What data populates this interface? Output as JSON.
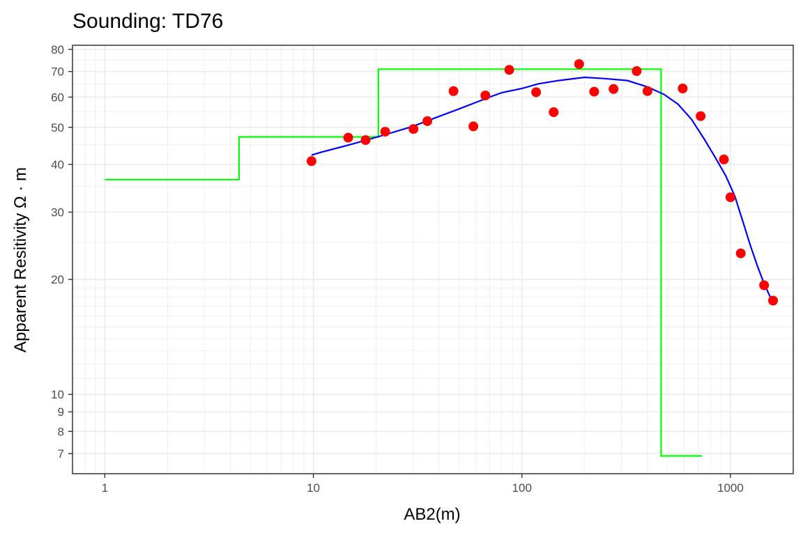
{
  "chart_data": {
    "type": "scatter",
    "title": "Sounding:  TD76",
    "xlabel": "AB2(m)",
    "ylabel": "Apparent Resitivity Ω · m",
    "x_scale": "log10",
    "y_scale": "log10",
    "xlim": [
      0.7,
      2000
    ],
    "ylim": [
      6.2,
      82
    ],
    "x_ticks": [
      {
        "value": 1,
        "label": "1"
      },
      {
        "value": 10,
        "label": "10"
      },
      {
        "value": 100,
        "label": "100"
      },
      {
        "value": 1000,
        "label": "1000"
      }
    ],
    "y_ticks": [
      {
        "value": 7,
        "label": "7"
      },
      {
        "value": 8,
        "label": "8"
      },
      {
        "value": 9,
        "label": "9"
      },
      {
        "value": 10,
        "label": "10"
      },
      {
        "value": 20,
        "label": "20"
      },
      {
        "value": 30,
        "label": "30"
      },
      {
        "value": 40,
        "label": "40"
      },
      {
        "value": 50,
        "label": "50"
      },
      {
        "value": 60,
        "label": "60"
      },
      {
        "value": 70,
        "label": "70"
      },
      {
        "value": 80,
        "label": "80"
      }
    ],
    "grid": true,
    "legend": "none",
    "colors": {
      "points": "#ff0000",
      "fit": "#0000ff",
      "model": "#00ff00",
      "panel_border": "#333333",
      "grid": "#ebebeb"
    },
    "series": [
      {
        "kind": "points",
        "x": [
          9.8,
          14.7,
          17.8,
          22.1,
          30.2,
          35.2,
          47.0,
          58.5,
          66.8,
          87.0,
          117,
          142,
          188,
          222,
          275,
          355,
          400,
          590,
          720,
          930,
          1000,
          1120,
          1450,
          1600
        ],
        "y": [
          40.8,
          47.0,
          46.3,
          48.7,
          49.5,
          51.9,
          62.2,
          50.3,
          60.6,
          70.7,
          61.8,
          54.8,
          73.2,
          62.0,
          63.0,
          70.2,
          62.2,
          63.2,
          53.5,
          41.2,
          32.8,
          23.4,
          19.3,
          17.6
        ]
      },
      {
        "kind": "fit",
        "x": [
          9.8,
          11,
          14,
          18,
          22,
          30,
          40,
          50,
          60,
          70,
          80,
          100,
          120,
          150,
          200,
          250,
          320,
          400,
          480,
          560,
          650,
          750,
          850,
          950,
          1050,
          1150,
          1250,
          1350,
          1450,
          1550,
          1600
        ],
        "y": [
          42.3,
          43.1,
          44.6,
          46.3,
          47.8,
          50.3,
          53.4,
          55.9,
          58.1,
          60.0,
          61.6,
          63.2,
          65.0,
          66.3,
          67.6,
          67.1,
          66.3,
          63.8,
          61.0,
          57.5,
          52.5,
          46.5,
          41.5,
          37.3,
          33.0,
          28.2,
          24.4,
          21.6,
          19.5,
          18.0,
          17.3
        ]
      },
      {
        "kind": "model",
        "x": [
          1,
          4.4,
          4.4,
          20.5,
          20.5,
          465,
          465,
          730
        ],
        "y": [
          36.5,
          36.5,
          47.2,
          47.2,
          71.0,
          71.0,
          6.9,
          6.9
        ]
      }
    ]
  }
}
